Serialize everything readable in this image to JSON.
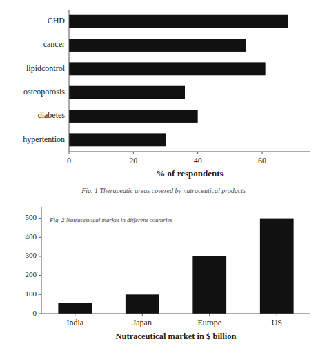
{
  "chart_data": [
    {
      "type": "bar",
      "orientation": "horizontal",
      "categories": [
        "CHD",
        "cancer",
        "lipidcontrol",
        "osteoporosis",
        "diabetes",
        "hypertention"
      ],
      "values": [
        68,
        55,
        61,
        36,
        40,
        30
      ],
      "color": "#111111",
      "xlabel": "% of respondents",
      "xlim": [
        0,
        75
      ],
      "xticks": [
        0,
        20,
        40,
        60
      ],
      "annotations": [
        "Fig. 1 Therapeutic areas covered by nutraceutical products"
      ]
    },
    {
      "type": "bar",
      "categories": [
        "India",
        "Japan",
        "Europe",
        "US"
      ],
      "values": [
        55,
        100,
        300,
        500
      ],
      "color": "#111111",
      "xlabel": "Nutraceutical market in $ billion",
      "ylim": [
        0,
        560
      ],
      "yticks": [
        0,
        100,
        200,
        300,
        400,
        500
      ],
      "annotations": [
        "Fig. 2 Nutraceutical market in different countries"
      ]
    }
  ]
}
